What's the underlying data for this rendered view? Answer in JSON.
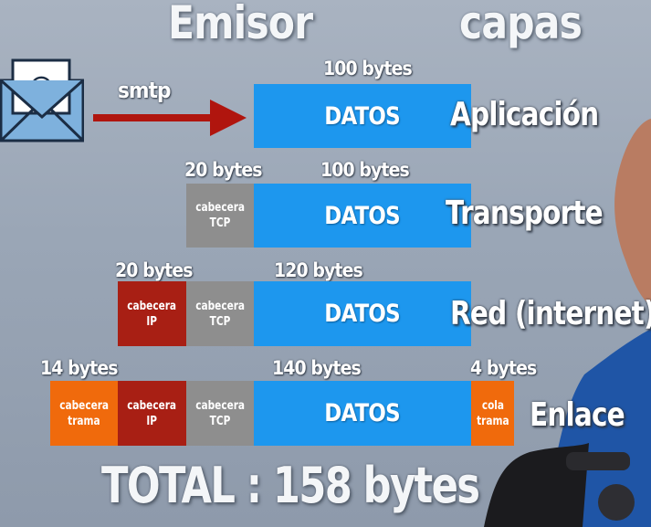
{
  "header": {
    "left_title": "Emisor",
    "right_title": "capas"
  },
  "envelope": {
    "icon": "envelope-at-icon",
    "symbol": "@"
  },
  "protocol_label": "smtp",
  "colors": {
    "datos": "#1d97ee",
    "cabecera_tcp": "#8e8e8e",
    "cabecera_ip": "#a81f14",
    "trama": "#f06a0c",
    "arrow": "#b0150e"
  },
  "rows": {
    "aplicacion": {
      "layer": "Aplicación",
      "datos_size": "100 bytes",
      "datos_label": "DATOS"
    },
    "transporte": {
      "layer": "Transporte",
      "tcp_size": "20 bytes",
      "datos_size": "100 bytes",
      "tcp_label_1": "cabecera",
      "tcp_label_2": "TCP",
      "datos_label": "DATOS"
    },
    "red": {
      "layer": "Red (internet)",
      "ip_size": "20 bytes",
      "datos_size": "120 bytes",
      "ip_label_1": "cabecera",
      "ip_label_2": "IP",
      "tcp_label_1": "cabecera",
      "tcp_label_2": "TCP",
      "datos_label": "DATOS"
    },
    "enlace": {
      "layer": "Enlace",
      "trama_size": "14 bytes",
      "datos_size": "140 bytes",
      "cola_size": "4 bytes",
      "trama_label_1": "cabecera",
      "trama_label_2": "trama",
      "ip_label_1": "cabecera",
      "ip_label_2": "IP",
      "tcp_label_1": "cabecera",
      "tcp_label_2": "TCP",
      "datos_label": "DATOS",
      "cola_label_1": "cola",
      "cola_label_2": "trama"
    }
  },
  "total": "TOTAL : 158 bytes"
}
